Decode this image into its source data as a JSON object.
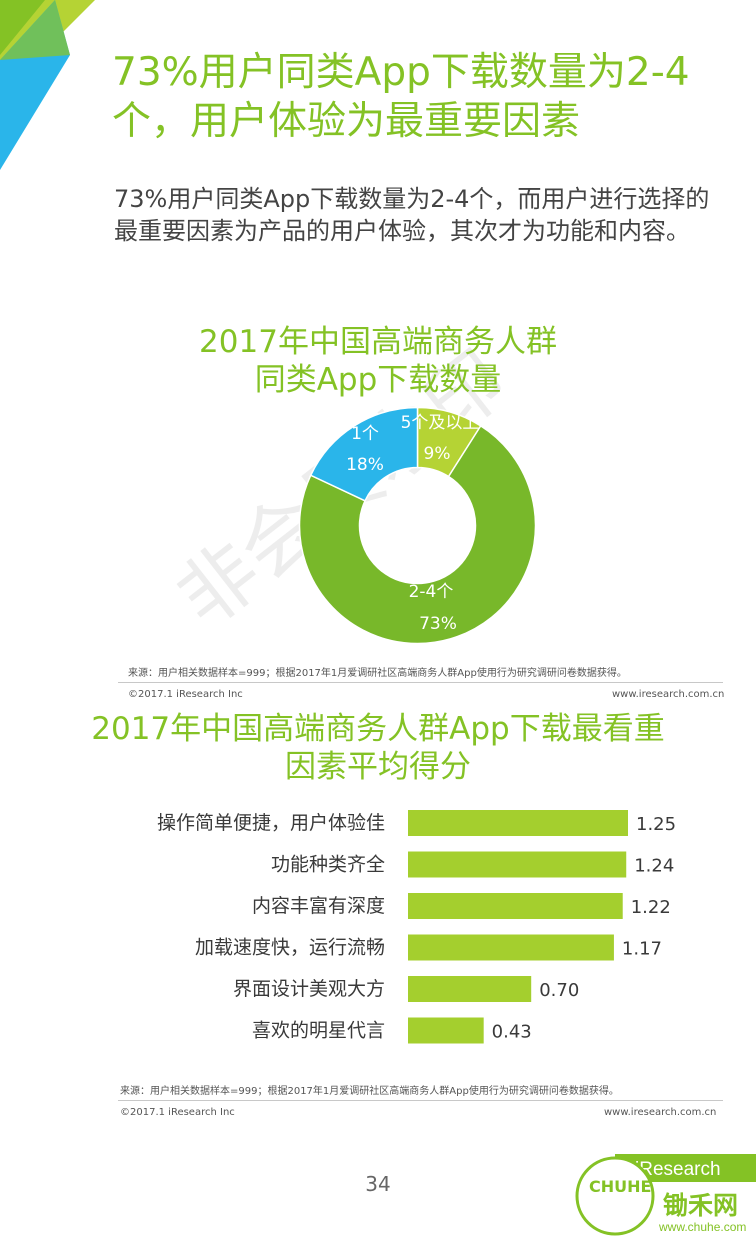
{
  "title": "73%用户同类App下载数量为2-4个，用户体验为最重要因素",
  "subtitle": "73%用户同类App下载数量为2-4个，而用户进行选择的最重要因素为产品的用户体验，其次才为功能和内容。",
  "watermark": "非会员水印",
  "section1": {
    "title_line1": "2017年中国高端商务人群",
    "title_line2": "同类App下载数量",
    "source": "来源：用户相关数据样本=999；根据2017年1月爱调研社区高端商务人群App使用行为研究调研问卷数据获得。",
    "copyright": "©2017.1 iResearch Inc",
    "website": "www.iresearch.com.cn"
  },
  "section2": {
    "title_line1": "2017年中国高端商务人群App下载最看重",
    "title_line2": "因素平均得分",
    "source": "来源：用户相关数据样本=999；根据2017年1月爱调研社区高端商务人群App使用行为研究调研问卷数据获得。",
    "copyright": "©2017.1 iResearch Inc",
    "website": "www.iresearch.com.cn"
  },
  "page_number": "34",
  "logo": {
    "brand": "iResearch",
    "site": "www.chuhe.com",
    "mark_text": "CHUHE",
    "name": "锄禾网"
  },
  "colors": {
    "green": "#84c225",
    "bar_green": "#a4cf2e",
    "donut_green": "#78b82a",
    "blue": "#2ab5ea",
    "light_green": "#b5d334"
  },
  "chart_data": [
    {
      "type": "pie",
      "donut": true,
      "title": "2017年中国高端商务人群同类App下载数量",
      "categories": [
        "5个及以上",
        "2-4个",
        "1个"
      ],
      "values": [
        9,
        73,
        18
      ],
      "labels": [
        "9%",
        "73%",
        "18%"
      ]
    },
    {
      "type": "bar",
      "orientation": "horizontal",
      "title": "2017年中国高端商务人群App下载最看重因素平均得分",
      "categories": [
        "操作简单便捷，用户体验佳",
        "功能种类齐全",
        "内容丰富有深度",
        "加载速度快，运行流畅",
        "界面设计美观大方",
        "喜欢的明星代言"
      ],
      "values": [
        1.25,
        1.24,
        1.22,
        1.17,
        0.7,
        0.43
      ],
      "labels": [
        "1.25",
        "1.24",
        "1.22",
        "1.17",
        "0.70",
        "0.43"
      ]
    }
  ]
}
